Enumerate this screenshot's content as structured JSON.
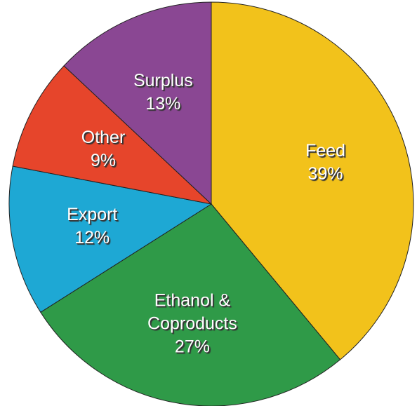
{
  "chart_data": {
    "type": "pie",
    "categories": [
      "Feed",
      "Ethanol & Coproducts",
      "Export",
      "Other",
      "Surplus"
    ],
    "values": [
      39,
      27,
      12,
      9,
      13
    ],
    "value_labels": [
      "39%",
      "27%",
      "12%",
      "9%",
      "13%"
    ],
    "colors": [
      "#f2c21b",
      "#2f9a48",
      "#1ea8d4",
      "#e6452b",
      "#8a4793"
    ]
  }
}
